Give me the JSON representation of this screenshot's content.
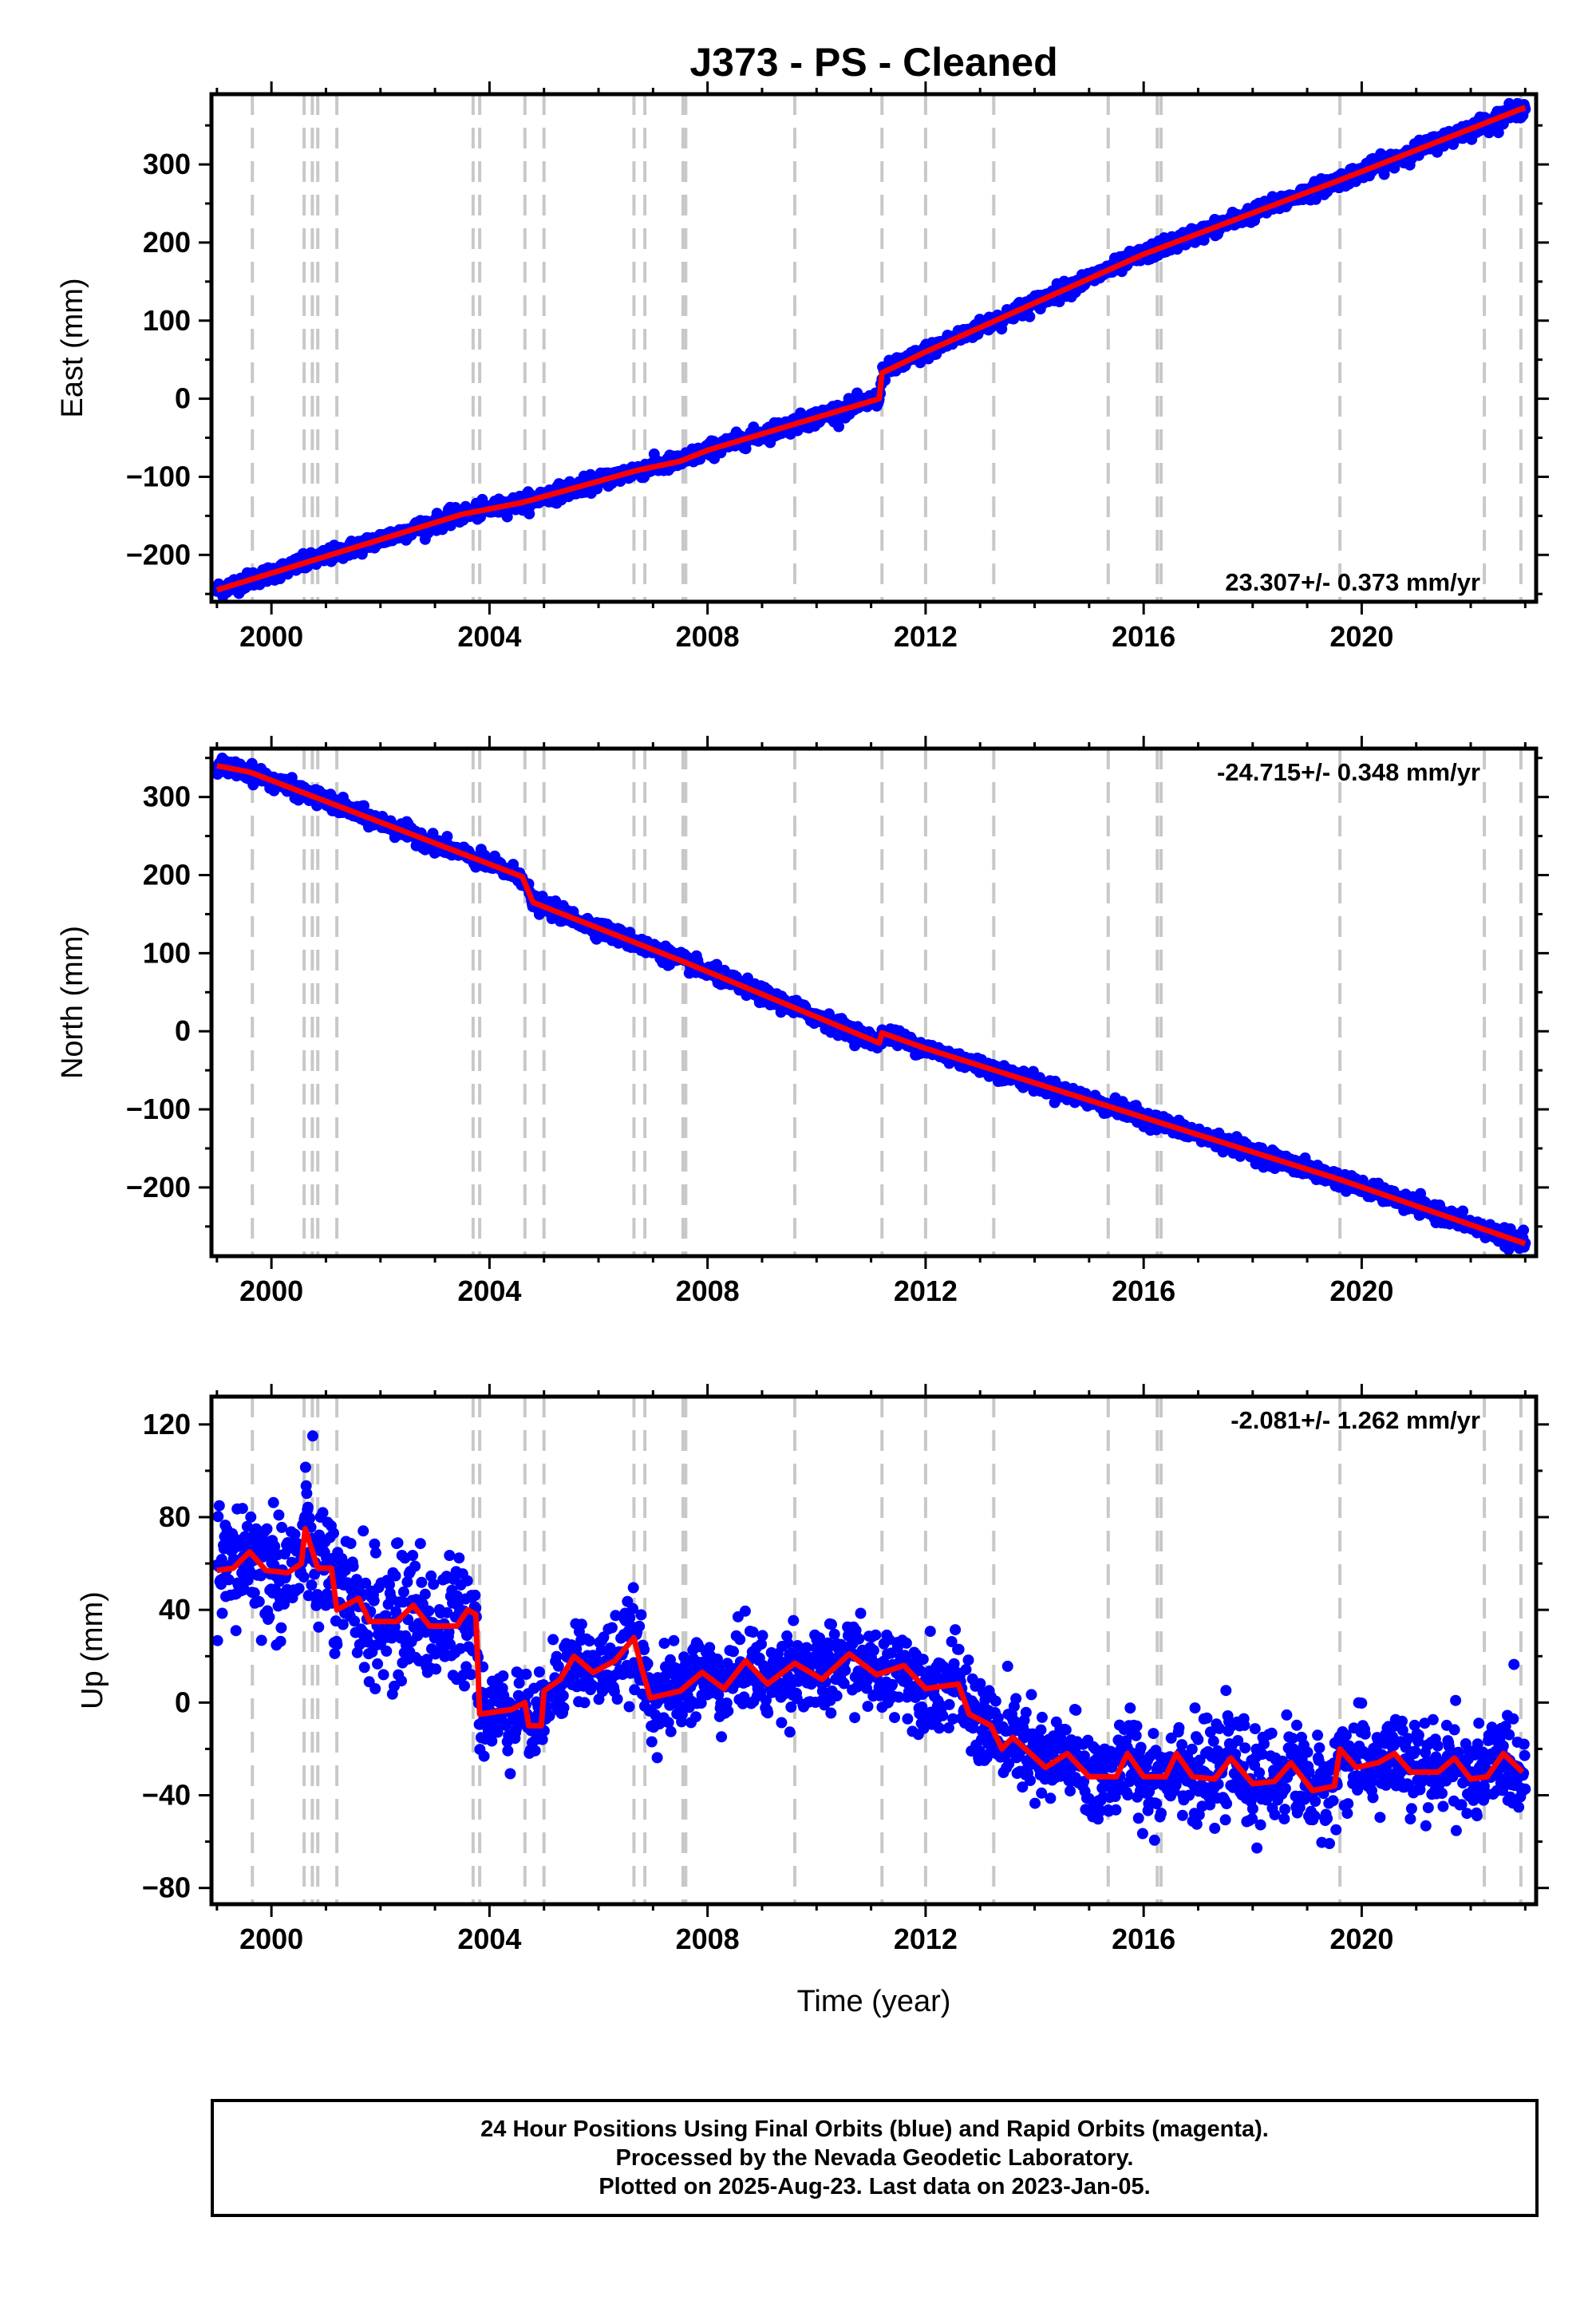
{
  "title": "J373  - PS - Cleaned",
  "xlabel": "Time (year)",
  "footer": {
    "line1": "24 Hour Positions Using Final Orbits (blue) and Rapid Orbits (magenta).",
    "line2": "Processed by the Nevada Geodetic Laboratory.",
    "line3": "Plotted on 2025-Aug-23. Last data on 2023-Jan-05."
  },
  "colors": {
    "points": "#0000ff",
    "fit": "#ff0000",
    "steps": "#c8c8c8",
    "frame": "#000000"
  },
  "chart_data": [
    {
      "type": "scatter",
      "name": "east",
      "ylabel": "East (mm)",
      "rate_label": "23.307+/- 0.373 mm/yr",
      "rate_position": "bottom-right",
      "xlim": [
        1998.9,
        2023.2
      ],
      "ylim": [
        -260,
        390
      ],
      "xticks": [
        2000,
        2004,
        2008,
        2012,
        2016,
        2020
      ],
      "yticks": [
        -200,
        -100,
        0,
        100,
        200,
        300
      ],
      "fit": [
        [
          1999.0,
          -245
        ],
        [
          2003.5,
          -148
        ],
        [
          2004.6,
          -133
        ],
        [
          2006.7,
          -92
        ],
        [
          2007.5,
          -80
        ],
        [
          2008.0,
          -66
        ],
        [
          2011.15,
          0
        ],
        [
          2011.2,
          33
        ],
        [
          2012.0,
          60
        ],
        [
          2016.0,
          185
        ],
        [
          2019.6,
          280
        ],
        [
          2023.0,
          373
        ]
      ]
    },
    {
      "type": "scatter",
      "name": "north",
      "ylabel": "North (mm)",
      "rate_label": "-24.715+/- 0.348 mm/yr",
      "rate_position": "top-right",
      "xlim": [
        1998.9,
        2023.2
      ],
      "ylim": [
        -288,
        362
      ],
      "xticks": [
        2000,
        2004,
        2008,
        2012,
        2016,
        2020
      ],
      "yticks": [
        -200,
        -100,
        0,
        100,
        200,
        300
      ],
      "fit": [
        [
          1999.0,
          340
        ],
        [
          1999.6,
          332
        ],
        [
          2004.6,
          198
        ],
        [
          2004.8,
          165
        ],
        [
          2007.6,
          88
        ],
        [
          2011.15,
          -15
        ],
        [
          2011.2,
          -2
        ],
        [
          2012.0,
          -22
        ],
        [
          2019.6,
          -190
        ],
        [
          2023.0,
          -272
        ]
      ]
    },
    {
      "type": "scatter",
      "name": "up",
      "ylabel": "Up (mm)",
      "rate_label": "-2.081+/- 1.262 mm/yr",
      "rate_position": "top-right",
      "xlim": [
        1998.9,
        2023.2
      ],
      "ylim": [
        -87,
        132
      ],
      "xticks": [
        2000,
        2004,
        2008,
        2012,
        2016,
        2020
      ],
      "yticks": [
        -80,
        -40,
        0,
        40,
        80,
        120
      ],
      "fit": [
        [
          1999.0,
          57
        ],
        [
          1999.3,
          58
        ],
        [
          1999.6,
          65
        ],
        [
          1999.9,
          57
        ],
        [
          2000.3,
          56
        ],
        [
          2000.55,
          60
        ],
        [
          2000.62,
          75
        ],
        [
          2000.85,
          58
        ],
        [
          2001.1,
          58
        ],
        [
          2001.2,
          40
        ],
        [
          2001.6,
          45
        ],
        [
          2001.8,
          35
        ],
        [
          2002.3,
          35
        ],
        [
          2002.6,
          42
        ],
        [
          2002.9,
          33
        ],
        [
          2003.4,
          33
        ],
        [
          2003.6,
          40
        ],
        [
          2003.75,
          38
        ],
        [
          2003.82,
          -5
        ],
        [
          2004.4,
          -3
        ],
        [
          2004.65,
          0
        ],
        [
          2004.72,
          -10
        ],
        [
          2004.95,
          -10
        ],
        [
          2005.0,
          5
        ],
        [
          2005.3,
          10
        ],
        [
          2005.55,
          20
        ],
        [
          2005.9,
          13
        ],
        [
          2006.3,
          18
        ],
        [
          2006.65,
          28
        ],
        [
          2006.8,
          14
        ],
        [
          2006.95,
          2
        ],
        [
          2007.5,
          5
        ],
        [
          2007.9,
          13
        ],
        [
          2008.3,
          6
        ],
        [
          2008.7,
          18
        ],
        [
          2009.1,
          8
        ],
        [
          2009.6,
          17
        ],
        [
          2010.1,
          10
        ],
        [
          2010.6,
          21
        ],
        [
          2011.1,
          12
        ],
        [
          2011.6,
          16
        ],
        [
          2012.0,
          6
        ],
        [
          2012.6,
          8
        ],
        [
          2012.8,
          -5
        ],
        [
          2013.2,
          -10
        ],
        [
          2013.4,
          -20
        ],
        [
          2013.6,
          -15
        ],
        [
          2014.2,
          -28
        ],
        [
          2014.6,
          -22
        ],
        [
          2015.0,
          -32
        ],
        [
          2015.5,
          -32
        ],
        [
          2015.7,
          -22
        ],
        [
          2016.0,
          -32
        ],
        [
          2016.4,
          -32
        ],
        [
          2016.6,
          -22
        ],
        [
          2016.9,
          -32
        ],
        [
          2017.3,
          -33
        ],
        [
          2017.6,
          -24
        ],
        [
          2018.0,
          -35
        ],
        [
          2018.4,
          -34
        ],
        [
          2018.7,
          -26
        ],
        [
          2019.1,
          -38
        ],
        [
          2019.5,
          -36
        ],
        [
          2019.6,
          -20
        ],
        [
          2019.9,
          -28
        ],
        [
          2020.3,
          -26
        ],
        [
          2020.6,
          -22
        ],
        [
          2020.9,
          -30
        ],
        [
          2021.4,
          -30
        ],
        [
          2021.7,
          -24
        ],
        [
          2022.0,
          -33
        ],
        [
          2022.3,
          -32
        ],
        [
          2022.6,
          -22
        ],
        [
          2022.95,
          -30
        ]
      ]
    }
  ],
  "step_epochs": [
    1999.65,
    2000.6,
    2000.75,
    2000.85,
    2001.2,
    2003.7,
    2003.82,
    2004.65,
    2005.0,
    2006.65,
    2006.85,
    2007.55,
    2007.6,
    2009.6,
    2011.2,
    2012.0,
    2013.25,
    2015.35,
    2016.25,
    2016.32,
    2019.6,
    2022.25,
    2022.92
  ]
}
